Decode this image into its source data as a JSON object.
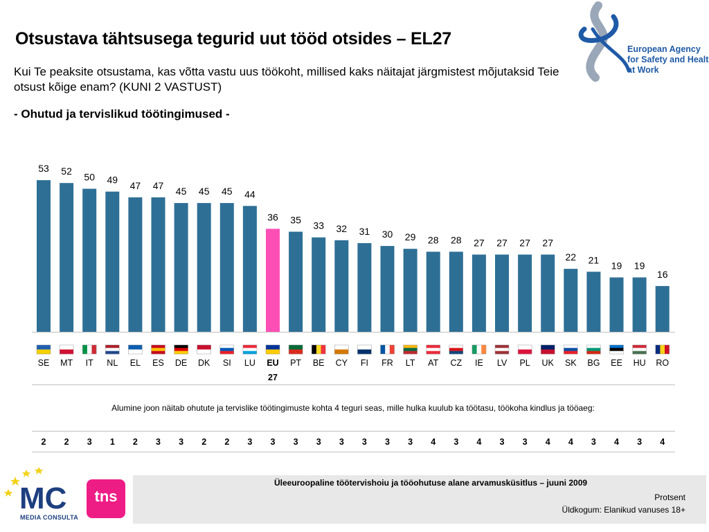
{
  "title": "Otsustava tähtsusega tegurid uut tööd otsides – EL27",
  "question": "Kui Te peaksite otsustama, kas võtta vastu uus töökoht, millised kaks näitajat järgmistest mõjutaksid Teie otsust kõige enam? (KUNI 2 VASTUST)",
  "subtitle": "- Ohutud ja tervislikud töötingimused -",
  "logo_eu": {
    "lines": [
      "European Agency",
      "for Safety and Health",
      "at Work"
    ],
    "color": "#1f5aa6"
  },
  "chart_data": {
    "type": "bar",
    "categories": [
      "SE",
      "MT",
      "IT",
      "NL",
      "EL",
      "ES",
      "DE",
      "DK",
      "SI",
      "LU",
      "EU 27",
      "PT",
      "BE",
      "CY",
      "FI",
      "FR",
      "LT",
      "AT",
      "CZ",
      "IE",
      "LV",
      "PL",
      "UK",
      "SK",
      "BG",
      "EE",
      "HU",
      "RO"
    ],
    "values": [
      53,
      52,
      50,
      49,
      47,
      47,
      45,
      45,
      45,
      44,
      36,
      35,
      33,
      32,
      31,
      30,
      29,
      28,
      28,
      27,
      27,
      27,
      27,
      22,
      21,
      19,
      19,
      16
    ],
    "ranks": [
      2,
      2,
      3,
      1,
      2,
      3,
      3,
      2,
      2,
      3,
      3,
      3,
      3,
      3,
      3,
      3,
      3,
      4,
      3,
      4,
      3,
      3,
      4,
      4,
      3,
      4,
      3,
      4
    ],
    "highlight_category": "EU 27",
    "bar_color": "#2e6f96",
    "highlight_color": "#ff4fb6",
    "ylim": [
      0,
      60
    ],
    "title": "",
    "xlabel": "",
    "ylabel": ""
  },
  "footnote": "Alumine joon näitab ohutute ja tervislike töötingimuste kohta 4 teguri seas, mille hulka kuulub ka töötasu, töökoha kindlus ja tööaeg:",
  "footer": {
    "survey": "Üleeuroopaline töötervishoiu ja tööohutuse alane arvamusküsitlus – juuni 2009",
    "unit": "Protsent",
    "base": "Üldkogum: Elanikud vanuses 18+"
  },
  "logos": {
    "mc": "MEDIA CONSULTA",
    "tns": "tns"
  }
}
